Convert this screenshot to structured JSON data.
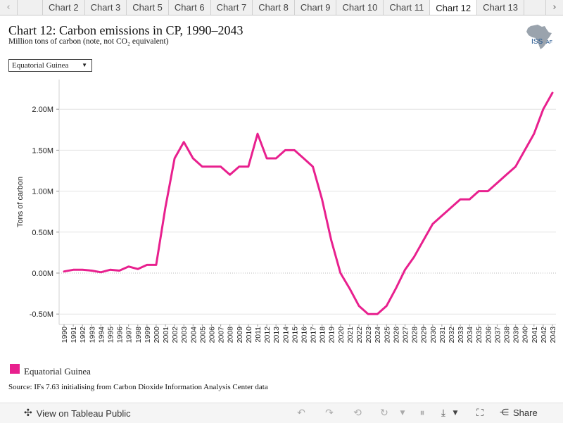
{
  "tabs": {
    "items": [
      "Chart 2",
      "Chart 3",
      "Chart 5",
      "Chart 6",
      "Chart 7",
      "Chart 8",
      "Chart 9",
      "Chart 10",
      "Chart 11",
      "Chart 12",
      "Chart 13"
    ],
    "active": "Chart 12",
    "left_arrow": "‹",
    "right_arrow": "›"
  },
  "header": {
    "title": "Chart 12: Carbon emissions in CP, 1990–2043",
    "subtitle": "Million tons of carbon (note, not CO₂ equivalent)",
    "logo_text": "ISS",
    "logo_suffix": "AF"
  },
  "filter": {
    "selected": "Equatorial Guinea"
  },
  "legend": {
    "label": "Equatorial Guinea"
  },
  "source": "Source: IFs 7.63 initialising from Carbon Dioxide Information Analysis Center data",
  "toolbar": {
    "view_label": "View on Tableau Public",
    "share_label": "Share"
  },
  "colors": {
    "series": "#e8208e",
    "grid": "#e2e2e2",
    "accent": "#1a4f8a"
  },
  "chart_data": {
    "type": "line",
    "title": "",
    "ylabel": "Tons of carbon",
    "xlabel": "",
    "ylim": [
      -0.6,
      2.3
    ],
    "y_ticks": [
      -0.5,
      0.0,
      0.5,
      1.0,
      1.5,
      2.0
    ],
    "y_tick_labels": [
      "-0.50M",
      "0.00M",
      "0.50M",
      "1.00M",
      "1.50M",
      "2.00M"
    ],
    "x": [
      1990,
      1991,
      1992,
      1993,
      1994,
      1995,
      1996,
      1997,
      1998,
      1999,
      2000,
      2001,
      2002,
      2003,
      2004,
      2005,
      2006,
      2007,
      2008,
      2009,
      2010,
      2011,
      2012,
      2013,
      2014,
      2015,
      2016,
      2017,
      2018,
      2019,
      2020,
      2021,
      2022,
      2023,
      2024,
      2025,
      2026,
      2027,
      2028,
      2029,
      2030,
      2031,
      2032,
      2033,
      2034,
      2035,
      2036,
      2037,
      2038,
      2039,
      2040,
      2041,
      2042,
      2043
    ],
    "series": [
      {
        "name": "Equatorial Guinea",
        "values": [
          0.02,
          0.04,
          0.04,
          0.03,
          0.01,
          0.04,
          0.03,
          0.08,
          0.05,
          0.1,
          0.1,
          0.8,
          1.4,
          1.6,
          1.4,
          1.3,
          1.3,
          1.3,
          1.2,
          1.3,
          1.3,
          1.7,
          1.4,
          1.4,
          1.5,
          1.5,
          1.4,
          1.3,
          0.9,
          0.4,
          0.0,
          -0.19,
          -0.4,
          -0.5,
          -0.5,
          -0.4,
          -0.19,
          0.04,
          0.2,
          0.4,
          0.6,
          0.7,
          0.8,
          0.9,
          0.9,
          1.0,
          1.0,
          1.1,
          1.2,
          1.3,
          1.5,
          1.7,
          2.0,
          2.2
        ]
      }
    ],
    "grid": true,
    "zero_line": "dotted",
    "legend_position": "bottom-left"
  }
}
